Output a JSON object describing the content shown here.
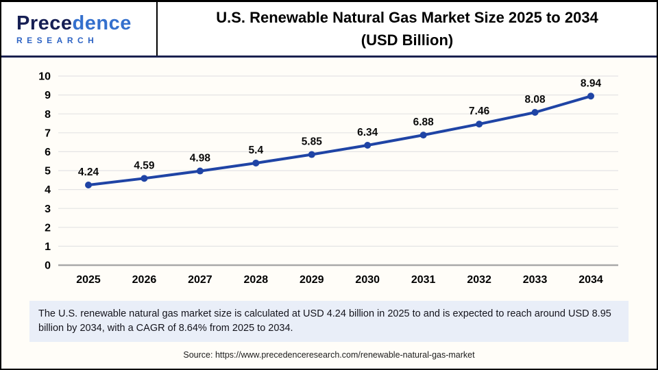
{
  "logo": {
    "wordmark_start": "Prece",
    "wordmark_end": "dence",
    "subtitle": "RESEARCH"
  },
  "header": {
    "title_line1": "U.S. Renewable Natural Gas Market Size 2025 to 2034",
    "title_line2": "(USD Billion)"
  },
  "chart_data": {
    "type": "line",
    "title": "U.S. Renewable Natural Gas Market Size 2025 to 2034 (USD Billion)",
    "categories": [
      "2025",
      "2026",
      "2027",
      "2028",
      "2029",
      "2030",
      "2031",
      "2032",
      "2033",
      "2034"
    ],
    "values": [
      4.24,
      4.59,
      4.98,
      5.4,
      5.85,
      6.34,
      6.88,
      7.46,
      8.08,
      8.94
    ],
    "point_labels": [
      "4.24",
      "4.59",
      "4.98",
      "5.4",
      "5.85",
      "6.34",
      "6.88",
      "7.46",
      "8.08",
      "8.94"
    ],
    "xlabel": "",
    "ylabel": "",
    "ylim": [
      0,
      10
    ],
    "yticks": [
      0,
      1,
      2,
      3,
      4,
      5,
      6,
      7,
      8,
      9,
      10
    ],
    "grid": true,
    "legend": "none"
  },
  "summary": {
    "text": "The U.S. renewable natural gas market size is calculated at USD 4.24 billion in 2025 to and is expected to reach around USD 8.95 billion by 2034, with a CAGR of 8.64% from 2025 to 2034."
  },
  "source": {
    "text": "Source: https://www.precedenceresearch.com/renewable-natural-gas-market"
  },
  "colors": {
    "line_blue": "#1f44a5",
    "divider_navy": "#1a2150",
    "grid_line": "#e4e4e4",
    "axis_line": "#a8a8a8",
    "summary_bg": "#e9eef8",
    "label_text": "#000000"
  }
}
